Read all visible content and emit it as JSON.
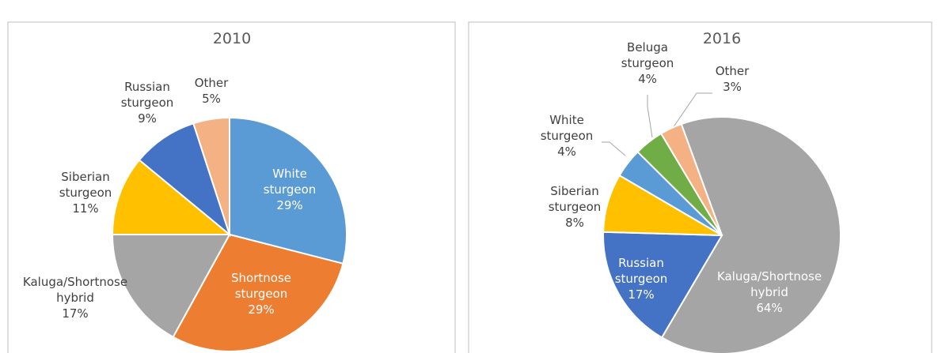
{
  "chart_data": [
    {
      "type": "pie",
      "title": "2010",
      "categories": [
        "White sturgeon",
        "Shortnose sturgeon",
        "Kaluga/Shortnose hybrid",
        "Siberian sturgeon",
        "Russian sturgeon",
        "Other"
      ],
      "values": [
        29,
        29,
        17,
        11,
        9,
        5
      ],
      "value_labels": [
        "29%",
        "29%",
        "17%",
        "11%",
        "9%",
        "5%"
      ],
      "colors": [
        "#5b9bd5",
        "#ed7d31",
        "#a5a5a5",
        "#ffc000",
        "#4472c4",
        "#f4b183"
      ]
    },
    {
      "type": "pie",
      "title": "2016",
      "categories": [
        "Kaluga/Shortnose hybrid",
        "Russian sturgeon",
        "Siberian sturgeon",
        "White sturgeon",
        "Beluga sturgeon",
        "Other"
      ],
      "values": [
        64,
        17,
        8,
        4,
        4,
        3
      ],
      "value_labels": [
        "64%",
        "17%",
        "8%",
        "4%",
        "4%",
        "3%"
      ],
      "colors": [
        "#a5a5a5",
        "#4472c4",
        "#ffc000",
        "#5b9bd5",
        "#70ad47",
        "#f4b183"
      ]
    }
  ]
}
